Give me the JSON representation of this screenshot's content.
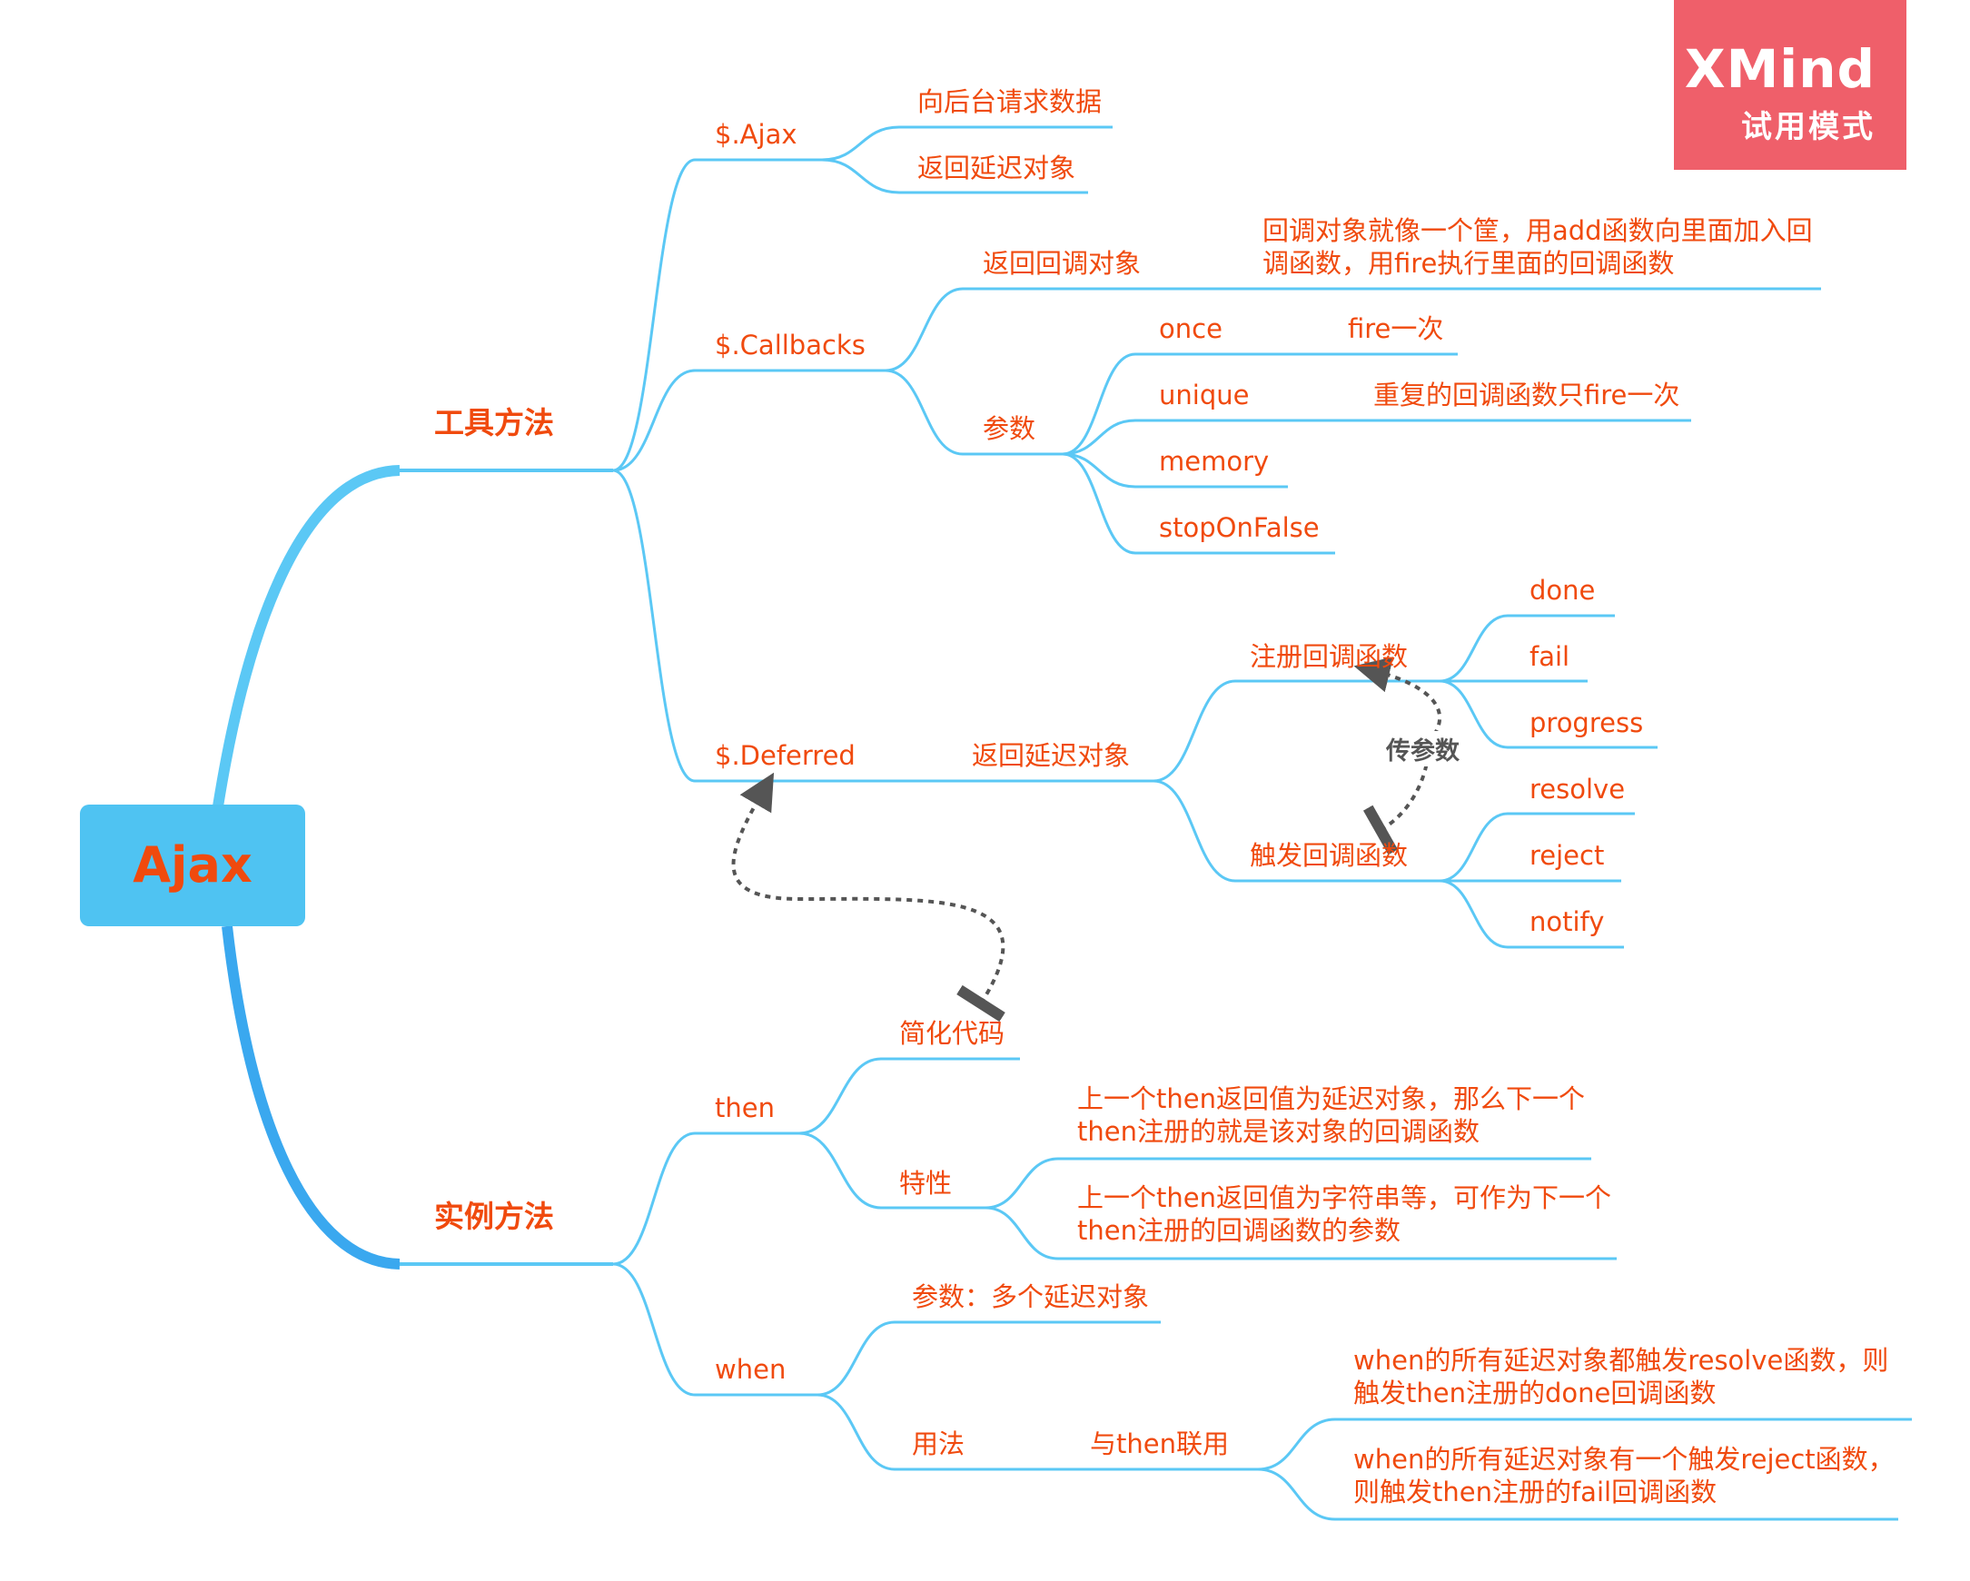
{
  "root": {
    "label": "Ajax"
  },
  "colors": {
    "text": "#f04a0e",
    "branch": "#5bc8f5",
    "root_fill": "#4fc3f2",
    "relation": "#555555",
    "badge": "#ef5f6a"
  },
  "tools": {
    "label": "工具方法",
    "ajax": {
      "label": "$.Ajax",
      "items": [
        "向后台请求数据",
        "返回延迟对象"
      ]
    },
    "callbacks": {
      "label": "$.Callbacks",
      "return_label": "返回回调对象",
      "return_desc": "回调对象就像一个筐，用add函数向里面加入回调函数，用fire执行里面的回调函数",
      "params_label": "参数",
      "params": [
        {
          "name": "once",
          "desc": "fire一次"
        },
        {
          "name": "unique",
          "desc": "重复的回调函数只fire一次"
        },
        {
          "name": "memory",
          "desc": ""
        },
        {
          "name": "stopOnFalse",
          "desc": ""
        }
      ]
    },
    "deferred": {
      "label": "$.Deferred",
      "return_label": "返回延迟对象",
      "register_label": "注册回调函数",
      "register_items": [
        "done",
        "fail",
        "progress"
      ],
      "trigger_label": "触发回调函数",
      "trigger_items": [
        "resolve",
        "reject",
        "notify"
      ]
    }
  },
  "instance": {
    "label": "实例方法",
    "then": {
      "label": "then",
      "simplify_label": "简化代码",
      "feature_label": "特性",
      "features": [
        "上一个then返回值为延迟对象，那么下一个then注册的就是该对象的回调函数",
        "上一个then返回值为字符串等，可作为下一个then注册的回调函数的参数"
      ]
    },
    "when": {
      "label": "when",
      "param_label": "参数：多个延迟对象",
      "usage_label": "用法",
      "with_then_label": "与then联用",
      "usages": [
        "when的所有延迟对象都触发resolve函数，则触发then注册的done回调函数",
        "when的所有延迟对象有一个触发reject函数，则触发then注册的fail回调函数"
      ]
    }
  },
  "relation_label": "传参数",
  "badge": {
    "logo": "XMind",
    "mode": "试用模式"
  }
}
